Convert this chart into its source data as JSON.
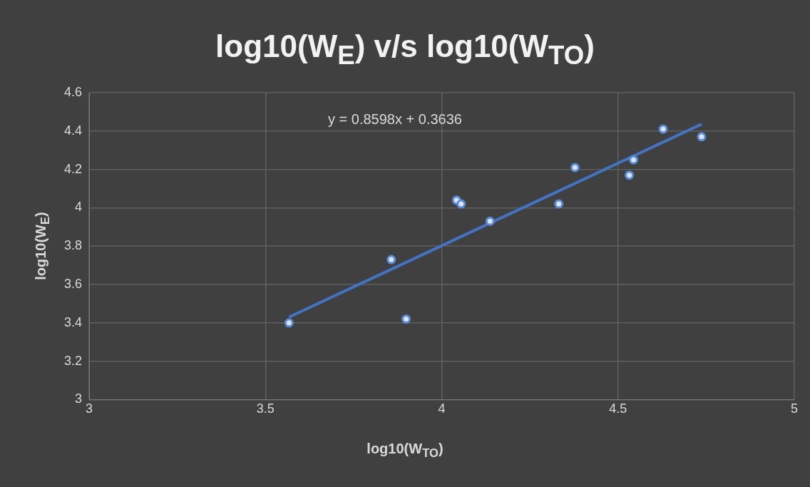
{
  "chart_data": {
    "type": "scatter",
    "title": "log10(W$_{E}$) v/s log10(W$_{TO}$)",
    "xlabel": "log10(W$_{TO}$)",
    "ylabel": "log10(W$_{E}$)",
    "annotations": [
      "y = 0.8598x + 0.3636"
    ],
    "xlim": [
      3,
      5
    ],
    "xticks": [
      3,
      3.5,
      4,
      4.5,
      5
    ],
    "ylim": [
      3,
      4.6
    ],
    "yticks": [
      3,
      3.2,
      3.4,
      3.6,
      3.8,
      4,
      4.2,
      4.4,
      4.6
    ],
    "grid": true,
    "legend": false,
    "series": [
      {
        "marker": "circle",
        "color": "#5b8bd6",
        "x": [
          3.567,
          3.857,
          3.899,
          4.042,
          4.055,
          4.137,
          4.332,
          4.378,
          4.532,
          4.544,
          4.628,
          4.737
        ],
        "values": [
          3.4,
          3.73,
          3.42,
          4.04,
          4.02,
          3.93,
          4.02,
          4.21,
          4.17,
          4.25,
          4.41,
          4.37
        ]
      },
      {
        "type": "line",
        "marker": "none",
        "color": "#4472c4",
        "x": [
          3.567,
          4.737
        ],
        "values": [
          3.43,
          4.436
        ]
      }
    ]
  }
}
